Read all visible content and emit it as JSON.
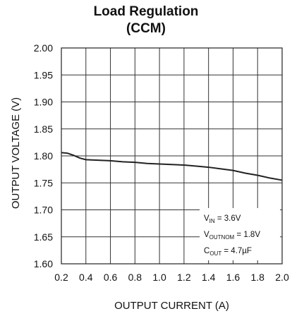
{
  "chart_data": {
    "type": "line",
    "title": "Load Regulation",
    "subtitle": "(CCM)",
    "xlabel": "OUTPUT CURRENT (A)",
    "ylabel": "OUTPUT VOLTAGE (V)",
    "xlim": [
      0.2,
      2.0
    ],
    "ylim": [
      1.6,
      2.0
    ],
    "xticks": [
      "0.2",
      "0.4",
      "0.6",
      "0.8",
      "1.0",
      "1.2",
      "1.4",
      "1.6",
      "1.8",
      "2.0"
    ],
    "yticks": [
      "2.00",
      "1.95",
      "1.90",
      "1.85",
      "1.80",
      "1.75",
      "1.70",
      "1.65",
      "1.60"
    ],
    "grid": true,
    "series": [
      {
        "x": [
          0.2,
          0.25,
          0.3,
          0.35,
          0.4,
          0.5,
          0.6,
          0.7,
          0.8,
          0.9,
          1.0,
          1.1,
          1.2,
          1.3,
          1.4,
          1.5,
          1.6,
          1.7,
          1.8,
          1.9,
          2.0
        ],
        "y": [
          1.806,
          1.805,
          1.801,
          1.796,
          1.793,
          1.792,
          1.791,
          1.789,
          1.788,
          1.786,
          1.785,
          1.784,
          1.783,
          1.781,
          1.779,
          1.776,
          1.773,
          1.768,
          1.764,
          1.759,
          1.755
        ]
      }
    ],
    "annotations": [
      {
        "main": "V",
        "sub": "IN",
        "rest": " = 3.6V"
      },
      {
        "main": "V",
        "sub": "OUTNOM",
        "rest": " = 1.8V"
      },
      {
        "main": "C",
        "sub": "OUT",
        "rest": " = 4.7µF"
      }
    ]
  }
}
